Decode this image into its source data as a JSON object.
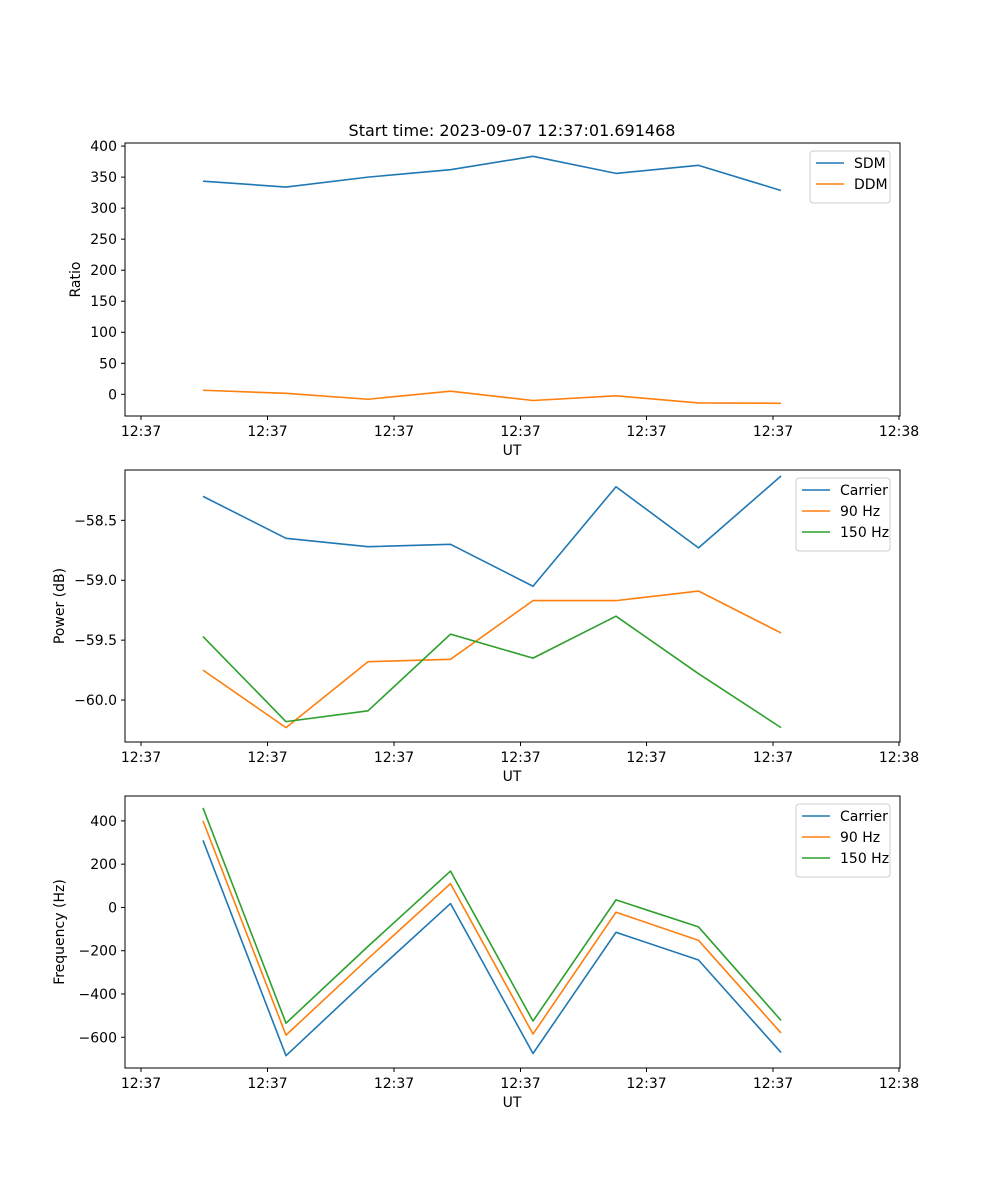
{
  "chart_data": [
    {
      "type": "line",
      "title": "Start time: 2023-09-07 12:37:01.691468",
      "xlabel": "UT",
      "ylabel": "Ratio",
      "x_tick_labels": [
        "12:37",
        "12:37",
        "12:37",
        "12:37",
        "12:37",
        "12:37",
        "12:38"
      ],
      "y_ticks": [
        0,
        50,
        100,
        150,
        200,
        250,
        300,
        350,
        400
      ],
      "y_tick_labels": [
        "0",
        "50",
        "100",
        "150",
        "200",
        "250",
        "300",
        "350",
        "400"
      ],
      "ylim": [
        -35,
        405
      ],
      "legend_position": "top-right",
      "series": [
        {
          "name": "SDM",
          "color": "#1f77b4",
          "values": [
            343.5,
            334,
            350,
            362,
            383.5,
            356,
            369,
            328.5
          ]
        },
        {
          "name": "DDM",
          "color": "#ff7f0e",
          "values": [
            6.5,
            1.5,
            -8,
            5,
            -10,
            -2.5,
            -14,
            -14.5
          ]
        }
      ]
    },
    {
      "type": "line",
      "xlabel": "UT",
      "ylabel": "Power (dB)",
      "x_tick_labels": [
        "12:37",
        "12:37",
        "12:37",
        "12:37",
        "12:37",
        "12:37",
        "12:38"
      ],
      "y_ticks": [
        -60.0,
        -59.5,
        -59.0,
        -58.5
      ],
      "y_tick_labels": [
        "−60.0",
        "−59.5",
        "−59.0",
        "−58.5"
      ],
      "ylim": [
        -60.35,
        -58.08
      ],
      "legend_position": "top-right",
      "series": [
        {
          "name": "Carrier",
          "color": "#1f77b4",
          "values": [
            -58.3,
            -58.65,
            -58.72,
            -58.7,
            -59.05,
            -58.22,
            -58.73,
            -58.13
          ]
        },
        {
          "name": "90 Hz",
          "color": "#ff7f0e",
          "values": [
            -59.75,
            -60.23,
            -59.68,
            -59.66,
            -59.17,
            -59.17,
            -59.09,
            -59.44
          ]
        },
        {
          "name": "150 Hz",
          "color": "#2ca02c",
          "values": [
            -59.47,
            -60.18,
            -60.09,
            -59.45,
            -59.65,
            -59.3,
            -59.78,
            -60.23
          ]
        }
      ]
    },
    {
      "type": "line",
      "xlabel": "UT",
      "ylabel": "Frequency (Hz)",
      "x_tick_labels": [
        "12:37",
        "12:37",
        "12:37",
        "12:37",
        "12:37",
        "12:37",
        "12:38"
      ],
      "y_ticks": [
        -600,
        -400,
        -200,
        0,
        200,
        400
      ],
      "y_tick_labels": [
        "−600",
        "−400",
        "−200",
        "0",
        "200",
        "400"
      ],
      "ylim": [
        -742,
        515
      ],
      "legend_position": "top-right",
      "series": [
        {
          "name": "Carrier",
          "color": "#1f77b4",
          "values": [
            310,
            -685,
            -330,
            18,
            -675,
            -115,
            -243,
            -670
          ]
        },
        {
          "name": "90 Hz",
          "color": "#ff7f0e",
          "values": [
            400,
            -590,
            -237,
            110,
            -585,
            -22,
            -152,
            -580
          ]
        },
        {
          "name": "150 Hz",
          "color": "#2ca02c",
          "values": [
            460,
            -535,
            -180,
            168,
            -525,
            35,
            -90,
            -522
          ]
        }
      ]
    }
  ]
}
